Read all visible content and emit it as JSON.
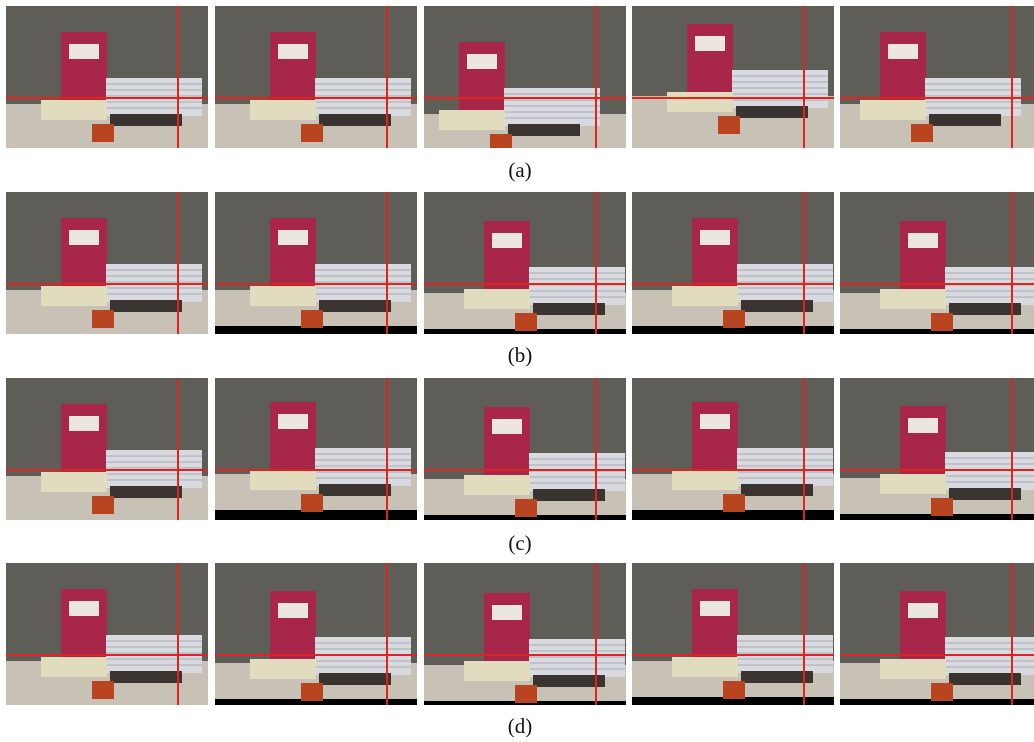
{
  "rows": [
    {
      "caption": "(a)"
    },
    {
      "caption": "(b)"
    },
    {
      "caption": "(c)"
    },
    {
      "caption": "(d)"
    }
  ]
}
